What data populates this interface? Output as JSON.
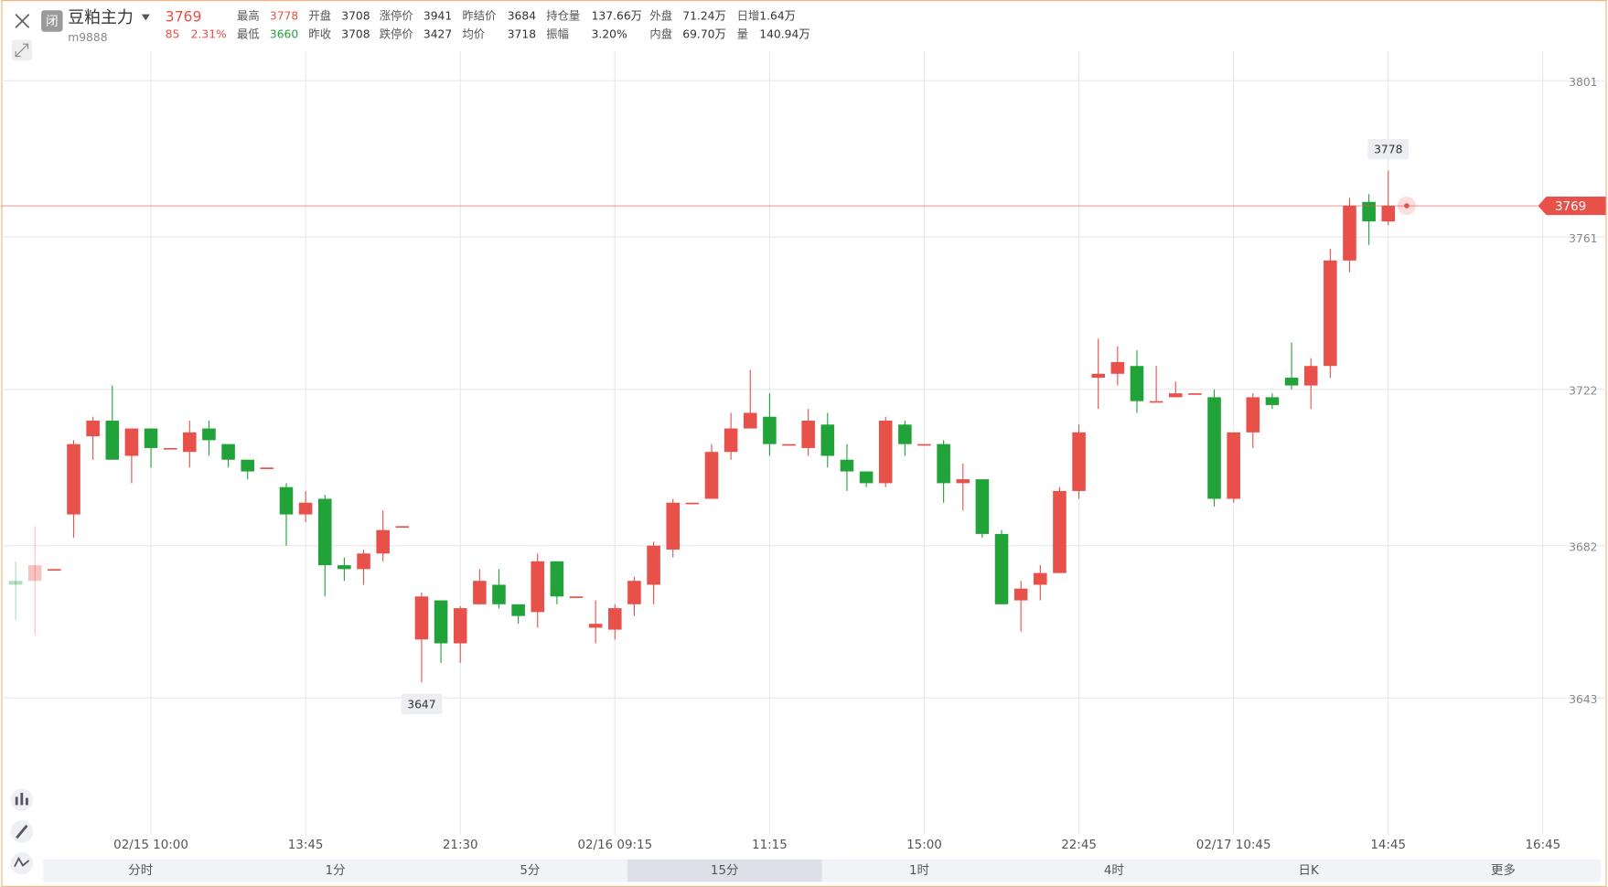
{
  "header": {
    "status": "闭",
    "name": "豆粕主力",
    "code": "m9888",
    "price": "3769",
    "change": "85",
    "change_pct": "2.31%",
    "fields": [
      [
        {
          "label": "最高",
          "value": "3778",
          "color": "#e8504a"
        },
        {
          "label": "开盘",
          "value": "3708"
        },
        {
          "label": "涨停价",
          "value": "3941"
        },
        {
          "label": "昨结价",
          "value": "3684"
        },
        {
          "label": "持仓量",
          "value": "137.66万"
        },
        {
          "label": "外盘",
          "value": "71.24万"
        },
        {
          "label": "日增",
          "value": "1.64万"
        }
      ],
      [
        {
          "label": "最低",
          "value": "3660",
          "color": "#22a33a"
        },
        {
          "label": "昨收",
          "value": "3708"
        },
        {
          "label": "跌停价",
          "value": "3427"
        },
        {
          "label": "均价",
          "value": "3718"
        },
        {
          "label": "振幅",
          "value": "3.20%"
        },
        {
          "label": "内盘",
          "value": "69.70万"
        },
        {
          "label": "量",
          "value": "140.94万"
        }
      ]
    ]
  },
  "tabs": {
    "items": [
      "分时",
      "1分",
      "5分",
      "15分",
      "1时",
      "4时",
      "日K",
      "更多"
    ],
    "active": 3
  },
  "chart_data": {
    "type": "candlestick",
    "up_color": "#e8504a",
    "down_color": "#22a33a",
    "grid": true,
    "ylim": [
      3608,
      3807
    ],
    "yticks": [
      3643,
      3682,
      3722,
      3761,
      3801
    ],
    "categories": [
      null,
      null,
      null,
      null,
      null,
      null,
      null,
      "02/15 10:00",
      null,
      null,
      null,
      null,
      null,
      null,
      null,
      "13:45",
      null,
      null,
      null,
      null,
      null,
      null,
      null,
      "21:30",
      null,
      null,
      null,
      null,
      null,
      null,
      null,
      "02/16 09:15",
      null,
      null,
      null,
      null,
      null,
      null,
      null,
      "11:15",
      null,
      null,
      null,
      null,
      null,
      null,
      null,
      "15:00",
      null,
      null,
      null,
      null,
      null,
      null,
      null,
      "22:45",
      null,
      null,
      null,
      null,
      null,
      null,
      null,
      "02/17 10:45",
      null,
      null,
      null,
      null,
      null,
      null,
      null,
      "14:45",
      null,
      null,
      null,
      null,
      null,
      null,
      null,
      "16:45"
    ],
    "open": [
      3673,
      3673,
      3676,
      3690,
      3710,
      3714,
      3705,
      3712,
      3707,
      3706,
      3712,
      3708,
      3704,
      3702,
      3697,
      3690,
      3694,
      3677,
      3676,
      3680,
      3687,
      3658,
      3668,
      3657,
      3667,
      3672,
      3667,
      3665,
      3678,
      3669,
      3661,
      3660.5,
      3667,
      3672,
      3681,
      3693,
      3694,
      3706,
      3712,
      3715,
      3708,
      3707,
      3713,
      3704,
      3701,
      3698,
      3713,
      3708,
      3708,
      3698,
      3699,
      3685,
      3668,
      3672,
      3675,
      3696,
      3725,
      3726,
      3728,
      3719,
      3720,
      3721,
      3720,
      3694,
      3711,
      3720,
      3725,
      3723,
      3728,
      3755,
      3770,
      3765,
      null,
      null,
      null,
      null,
      null,
      null,
      null,
      null
    ],
    "high": [
      3678,
      3687,
      3676,
      3709,
      3715,
      3723,
      3712,
      3712,
      3707,
      3714,
      3714,
      3708,
      3704,
      3702,
      3698,
      3696,
      3695,
      3679,
      3681,
      3691,
      3687,
      3670,
      3668,
      3666.5,
      3676,
      3676,
      3667,
      3680,
      3678,
      3669,
      3668,
      3667,
      3674,
      3683,
      3694,
      3693,
      3708,
      3716,
      3727,
      3721,
      3708,
      3717,
      3716,
      3708,
      3701,
      3715,
      3714,
      3708,
      3709,
      3703,
      3699,
      3686,
      3673,
      3677,
      3697,
      3713,
      3735,
      3733,
      3732,
      3728,
      3724,
      3721,
      3722,
      3711,
      3721,
      3721,
      3734,
      3730,
      3758,
      3771,
      3772,
      3778,
      null,
      null,
      null,
      null,
      null,
      null,
      null,
      null
    ],
    "low": [
      3663,
      3659,
      3676,
      3684,
      3704,
      3704,
      3698,
      3702,
      3707,
      3702,
      3705,
      3702,
      3699,
      3702,
      3682,
      3688,
      3669,
      3673,
      3672,
      3678,
      3687,
      3647,
      3652,
      3652,
      3667,
      3666,
      3662,
      3661,
      3667,
      3669,
      3657,
      3658,
      3664,
      3667,
      3679,
      3693,
      3694,
      3704,
      3712,
      3705,
      3708,
      3705,
      3702,
      3696,
      3697,
      3697,
      3705,
      3708,
      3693,
      3691,
      3684,
      3667,
      3660,
      3668,
      3675,
      3694,
      3717,
      3723,
      3716,
      3719,
      3720,
      3721,
      3692,
      3693,
      3707,
      3717,
      3722,
      3717,
      3725,
      3752,
      3759,
      3764,
      null,
      null,
      null,
      null,
      null,
      null,
      null,
      null
    ],
    "close": [
      3672,
      3677,
      3676,
      3708,
      3714,
      3704,
      3712,
      3707,
      3707,
      3711,
      3709,
      3704,
      3701,
      3702,
      3690,
      3693,
      3677,
      3676,
      3680,
      3686,
      3687,
      3669,
      3657,
      3666,
      3673,
      3667,
      3664,
      3678,
      3669,
      3669,
      3662,
      3666,
      3673,
      3682,
      3693,
      3693,
      3706,
      3712,
      3716,
      3708,
      3708,
      3714,
      3705,
      3701,
      3698,
      3714,
      3708,
      3708,
      3698,
      3699,
      3685,
      3667,
      3671,
      3675,
      3696,
      3711,
      3726,
      3729,
      3719,
      3719,
      3721,
      3721,
      3694,
      3711,
      3720,
      3718,
      3723,
      3728,
      3755,
      3769,
      3765,
      3769,
      null,
      null,
      null,
      null,
      null,
      null,
      null,
      null
    ],
    "max_label": 3778,
    "min_label": 3647,
    "last_label": 3769
  }
}
